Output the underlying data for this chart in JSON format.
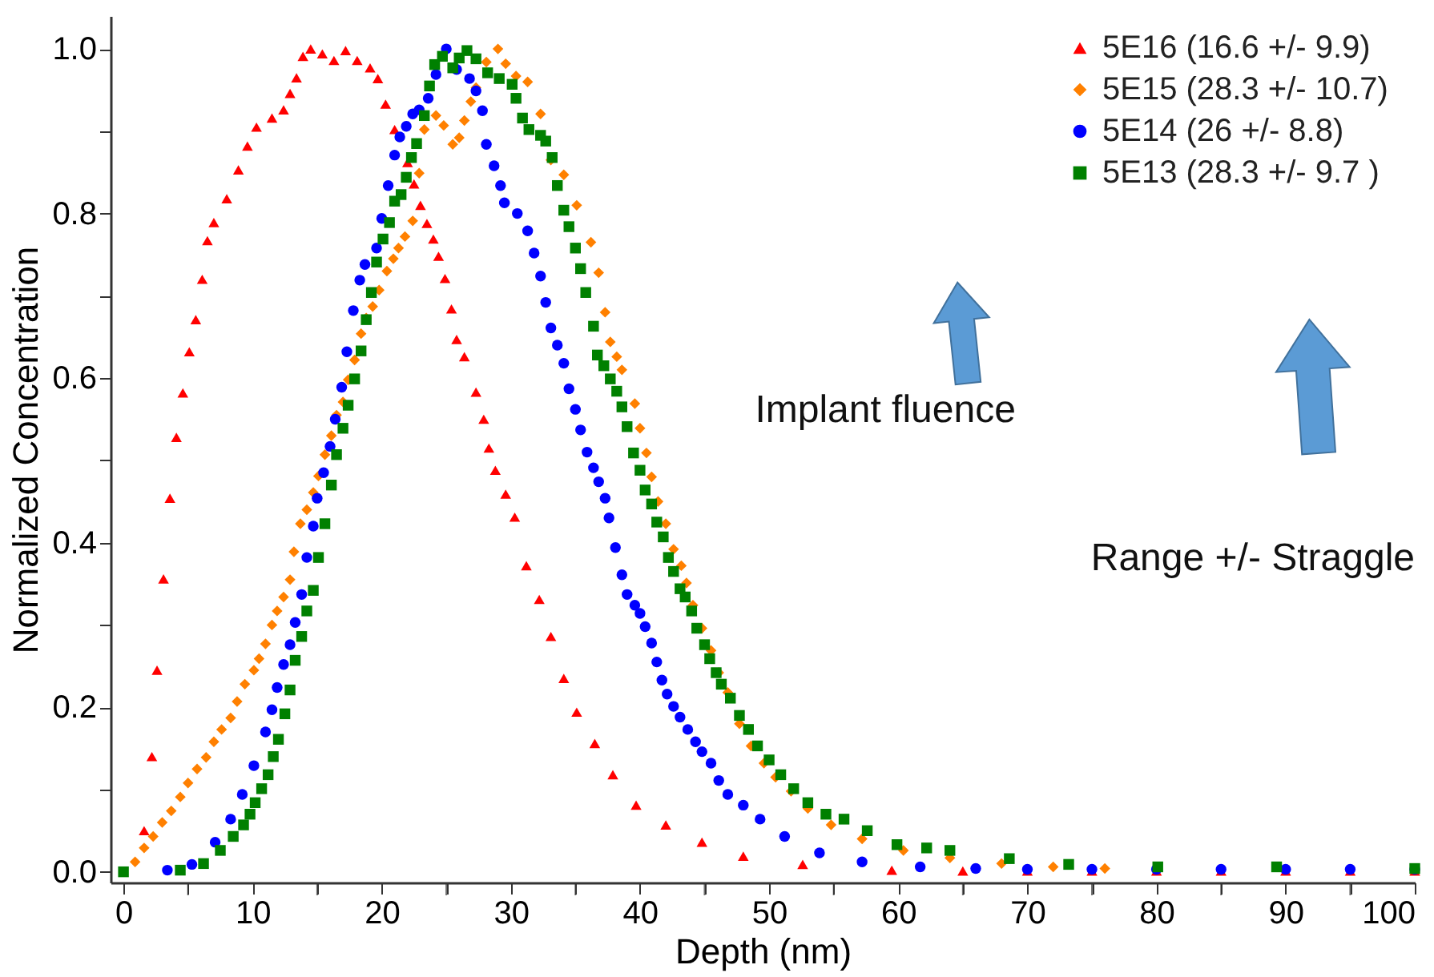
{
  "chart_data": {
    "type": "scatter",
    "xlabel": "Depth (nm)",
    "ylabel": "Normalized Concentration",
    "xlim": [
      -1,
      100
    ],
    "ylim": [
      -0.013,
      1.04
    ],
    "xticks": [
      0,
      {
        "value": 5,
        "label": null
      },
      10,
      {
        "value": 15,
        "label": null
      },
      20,
      {
        "value": 25,
        "label": null
      },
      30,
      {
        "value": 35,
        "label": null
      },
      40,
      {
        "value": 45,
        "label": null
      },
      50,
      {
        "value": 55,
        "label": null
      },
      60,
      {
        "value": 65,
        "label": null
      },
      70,
      {
        "value": 75,
        "label": null
      },
      80,
      {
        "value": 85,
        "label": null
      },
      90,
      {
        "value": 95,
        "label": null
      },
      100
    ],
    "yticks": [
      {
        "value": 0,
        "label": "0.0"
      },
      {
        "value": 0.1,
        "label": null
      },
      {
        "value": 0.2,
        "label": "0.2"
      },
      {
        "value": 0.3,
        "label": null
      },
      {
        "value": 0.4,
        "label": "0.4"
      },
      {
        "value": 0.5,
        "label": null
      },
      {
        "value": 0.6,
        "label": "0.6"
      },
      {
        "value": 0.7,
        "label": null
      },
      {
        "value": 0.8,
        "label": "0.8"
      },
      {
        "value": 0.9,
        "label": null
      },
      {
        "value": 1.0,
        "label": "1.0"
      }
    ],
    "grid": false,
    "legend": "top right",
    "annotations": [
      "Implant fluence",
      "Range +/- Straggle"
    ],
    "series": [
      {
        "name": "5E16 (16.6 +/- 9.9)",
        "color": "#ff0000",
        "marker": "triangle",
        "x": [
          1.6,
          2.2,
          2.6,
          3.1,
          3.6,
          4.1,
          4.6,
          5.1,
          5.6,
          6.1,
          6.5,
          7.0,
          8.0,
          8.9,
          9.6,
          10.3,
          11.5,
          12.4,
          12.9,
          13.4,
          13.9,
          14.5,
          15.4,
          16.3,
          17.2,
          18.1,
          19.1,
          19.7,
          20.3,
          21.0,
          22.0,
          22.5,
          23.0,
          23.5,
          24.0,
          24.4,
          24.9,
          25.4,
          25.8,
          26.4,
          27.3,
          27.9,
          28.3,
          28.8,
          29.6,
          30.3,
          31.2,
          32.2,
          33.1,
          34.1,
          35.1,
          36.5,
          37.9,
          39.7,
          42.0,
          44.8,
          48.0,
          52.6,
          59.5,
          65,
          70,
          75,
          80,
          85,
          90,
          95,
          100
        ],
        "values": [
          0.05,
          0.14,
          0.245,
          0.356,
          0.454,
          0.528,
          0.582,
          0.632,
          0.671,
          0.72,
          0.767,
          0.789,
          0.818,
          0.853,
          0.882,
          0.905,
          0.916,
          0.926,
          0.946,
          0.965,
          0.991,
          1.0,
          0.994,
          0.986,
          0.998,
          0.986,
          0.977,
          0.964,
          0.933,
          0.902,
          0.862,
          0.836,
          0.81,
          0.788,
          0.769,
          0.748,
          0.721,
          0.684,
          0.647,
          0.626,
          0.583,
          0.55,
          0.515,
          0.488,
          0.459,
          0.431,
          0.372,
          0.331,
          0.286,
          0.235,
          0.194,
          0.156,
          0.118,
          0.081,
          0.057,
          0.036,
          0.019,
          0.009,
          0.002,
          0.001,
          0.001,
          0.001,
          0.001,
          0.001,
          0.001,
          0.001,
          0.001
        ]
      },
      {
        "name": "5E15  (28.3 +/- 10.7)",
        "color": "#ff8000",
        "marker": "diamond",
        "x": [
          0.9,
          1.6,
          2.3,
          3.0,
          3.7,
          4.4,
          5.0,
          5.7,
          6.4,
          7.0,
          7.6,
          8.3,
          8.8,
          9.4,
          10.1,
          10.5,
          11.0,
          11.5,
          11.9,
          12.4,
          12.9,
          13.2,
          13.7,
          14.2,
          14.7,
          15.1,
          15.6,
          16.1,
          16.5,
          17.0,
          17.4,
          17.9,
          18.4,
          18.8,
          19.3,
          19.8,
          20.4,
          20.9,
          21.3,
          21.8,
          22.4,
          22.9,
          23.3,
          24.2,
          24.8,
          25.5,
          26.0,
          26.4,
          26.9,
          27.3,
          28.1,
          29.0,
          29.6,
          30.4,
          31.3,
          32.3,
          33.1,
          34.1,
          35.1,
          36.2,
          36.8,
          37.3,
          37.7,
          38.2,
          38.6,
          39.6,
          40.0,
          40.5,
          40.9,
          41.4,
          42.0,
          42.6,
          43.2,
          43.6,
          44.1,
          44.8,
          45.5,
          46.1,
          46.8,
          47.7,
          48.6,
          49.6,
          50.5,
          51.7,
          53.0,
          54.8,
          57.2,
          60.4,
          64.0,
          68,
          72,
          76
        ],
        "values": [
          0.012,
          0.029,
          0.043,
          0.06,
          0.074,
          0.091,
          0.108,
          0.125,
          0.139,
          0.158,
          0.173,
          0.187,
          0.207,
          0.228,
          0.245,
          0.259,
          0.277,
          0.3,
          0.317,
          0.334,
          0.355,
          0.389,
          0.423,
          0.44,
          0.461,
          0.481,
          0.507,
          0.53,
          0.555,
          0.571,
          0.598,
          0.622,
          0.654,
          0.673,
          0.687,
          0.707,
          0.73,
          0.745,
          0.758,
          0.772,
          0.791,
          0.849,
          0.902,
          0.919,
          0.907,
          0.884,
          0.892,
          0.913,
          0.936,
          0.953,
          0.984,
          1.0,
          0.982,
          0.967,
          0.96,
          0.921,
          0.865,
          0.847,
          0.81,
          0.765,
          0.728,
          0.68,
          0.644,
          0.626,
          0.61,
          0.569,
          0.539,
          0.509,
          0.48,
          0.45,
          0.423,
          0.392,
          0.372,
          0.351,
          0.324,
          0.296,
          0.269,
          0.242,
          0.218,
          0.18,
          0.153,
          0.132,
          0.115,
          0.098,
          0.077,
          0.057,
          0.04,
          0.026,
          0.017,
          0.01,
          0.006,
          0.004
        ]
      },
      {
        "name": "5E14 (26 +/- 8.8)",
        "color": "#0000ff",
        "marker": "circle",
        "x": [
          3.4,
          5.3,
          7.1,
          8.3,
          9.2,
          10.1,
          11.0,
          11.5,
          11.9,
          12.4,
          12.9,
          13.3,
          13.8,
          14.2,
          14.7,
          15.0,
          15.5,
          16.0,
          16.4,
          16.9,
          17.3,
          17.8,
          18.3,
          18.7,
          19.6,
          20.0,
          20.5,
          21.0,
          21.4,
          21.9,
          22.4,
          22.9,
          23.6,
          24.2,
          25.0,
          25.8,
          26.8,
          27.3,
          27.8,
          28.1,
          28.7,
          29.2,
          29.5,
          30.5,
          31.3,
          31.8,
          32.3,
          32.7,
          33.1,
          33.6,
          34.1,
          34.5,
          35.0,
          35.4,
          35.9,
          36.4,
          36.8,
          37.3,
          37.6,
          38.1,
          38.6,
          39.0,
          39.6,
          40.0,
          40.4,
          40.9,
          41.3,
          41.7,
          42.1,
          42.6,
          43.1,
          43.7,
          44.3,
          44.8,
          45.5,
          46.1,
          46.8,
          48.0,
          49.3,
          51.2,
          53.9,
          57.2,
          61.7,
          66,
          70,
          75,
          80,
          85,
          90,
          95,
          100
        ],
        "values": [
          0.002,
          0.009,
          0.036,
          0.064,
          0.094,
          0.129,
          0.17,
          0.197,
          0.224,
          0.252,
          0.276,
          0.303,
          0.337,
          0.382,
          0.42,
          0.454,
          0.485,
          0.517,
          0.55,
          0.589,
          0.632,
          0.682,
          0.719,
          0.738,
          0.758,
          0.794,
          0.834,
          0.871,
          0.893,
          0.906,
          0.921,
          0.926,
          0.94,
          0.969,
          1.0,
          0.975,
          0.964,
          0.949,
          0.925,
          0.884,
          0.858,
          0.834,
          0.813,
          0.8,
          0.779,
          0.752,
          0.724,
          0.692,
          0.661,
          0.64,
          0.618,
          0.587,
          0.562,
          0.537,
          0.51,
          0.491,
          0.474,
          0.454,
          0.43,
          0.394,
          0.361,
          0.337,
          0.324,
          0.314,
          0.298,
          0.278,
          0.255,
          0.233,
          0.216,
          0.201,
          0.188,
          0.173,
          0.158,
          0.146,
          0.132,
          0.111,
          0.094,
          0.081,
          0.064,
          0.043,
          0.023,
          0.012,
          0.006,
          0.004,
          0.003,
          0.003,
          0.003,
          0.003,
          0.003,
          0.003,
          0.003
        ]
      },
      {
        "name": "5E13 (28.3 +/- 9.7 )",
        "color": "#008000",
        "marker": "square",
        "x": [
          0,
          4.4,
          6.2,
          7.5,
          8.5,
          9.3,
          9.8,
          10.2,
          10.7,
          11.2,
          11.6,
          12.0,
          12.5,
          12.9,
          13.3,
          13.8,
          14.2,
          14.7,
          15.1,
          15.6,
          16.1,
          16.5,
          17.0,
          17.4,
          17.9,
          18.4,
          18.8,
          19.2,
          19.6,
          20.1,
          20.6,
          21.0,
          21.5,
          21.9,
          22.3,
          22.7,
          23.3,
          23.7,
          24.1,
          24.7,
          25.5,
          26.0,
          26.6,
          27.3,
          28.2,
          29.1,
          30.1,
          30.4,
          30.9,
          31.4,
          32.3,
          32.7,
          33.2,
          33.6,
          34.1,
          34.5,
          35.0,
          35.4,
          35.8,
          36.4,
          36.7,
          37.2,
          37.7,
          38.2,
          38.6,
          39.0,
          39.5,
          40.0,
          40.4,
          40.9,
          41.3,
          41.8,
          42.2,
          42.6,
          43.1,
          43.5,
          44.0,
          44.4,
          45.0,
          45.4,
          45.9,
          46.3,
          47.0,
          47.7,
          48.4,
          49.1,
          50.0,
          50.9,
          51.9,
          53.0,
          54.4,
          55.8,
          57.6,
          59.9,
          62.2,
          64.0,
          68.6,
          73.2,
          80.1,
          89.3,
          100
        ],
        "values": [
          0,
          0.002,
          0.01,
          0.026,
          0.043,
          0.057,
          0.07,
          0.084,
          0.101,
          0.118,
          0.14,
          0.161,
          0.192,
          0.221,
          0.257,
          0.286,
          0.317,
          0.342,
          0.382,
          0.423,
          0.47,
          0.507,
          0.539,
          0.567,
          0.599,
          0.633,
          0.671,
          0.704,
          0.741,
          0.769,
          0.789,
          0.815,
          0.823,
          0.844,
          0.868,
          0.885,
          0.919,
          0.955,
          0.981,
          0.991,
          0.977,
          0.989,
          0.998,
          0.988,
          0.971,
          0.964,
          0.957,
          0.94,
          0.916,
          0.902,
          0.895,
          0.888,
          0.868,
          0.834,
          0.804,
          0.784,
          0.758,
          0.733,
          0.704,
          0.663,
          0.628,
          0.615,
          0.599,
          0.584,
          0.565,
          0.541,
          0.509,
          0.488,
          0.464,
          0.447,
          0.425,
          0.407,
          0.382,
          0.365,
          0.344,
          0.334,
          0.317,
          0.296,
          0.276,
          0.259,
          0.242,
          0.228,
          0.211,
          0.19,
          0.173,
          0.153,
          0.136,
          0.118,
          0.101,
          0.084,
          0.07,
          0.064,
          0.05,
          0.033,
          0.029,
          0.026,
          0.016,
          0.009,
          0.006,
          0.006,
          0.004
        ]
      }
    ]
  }
}
